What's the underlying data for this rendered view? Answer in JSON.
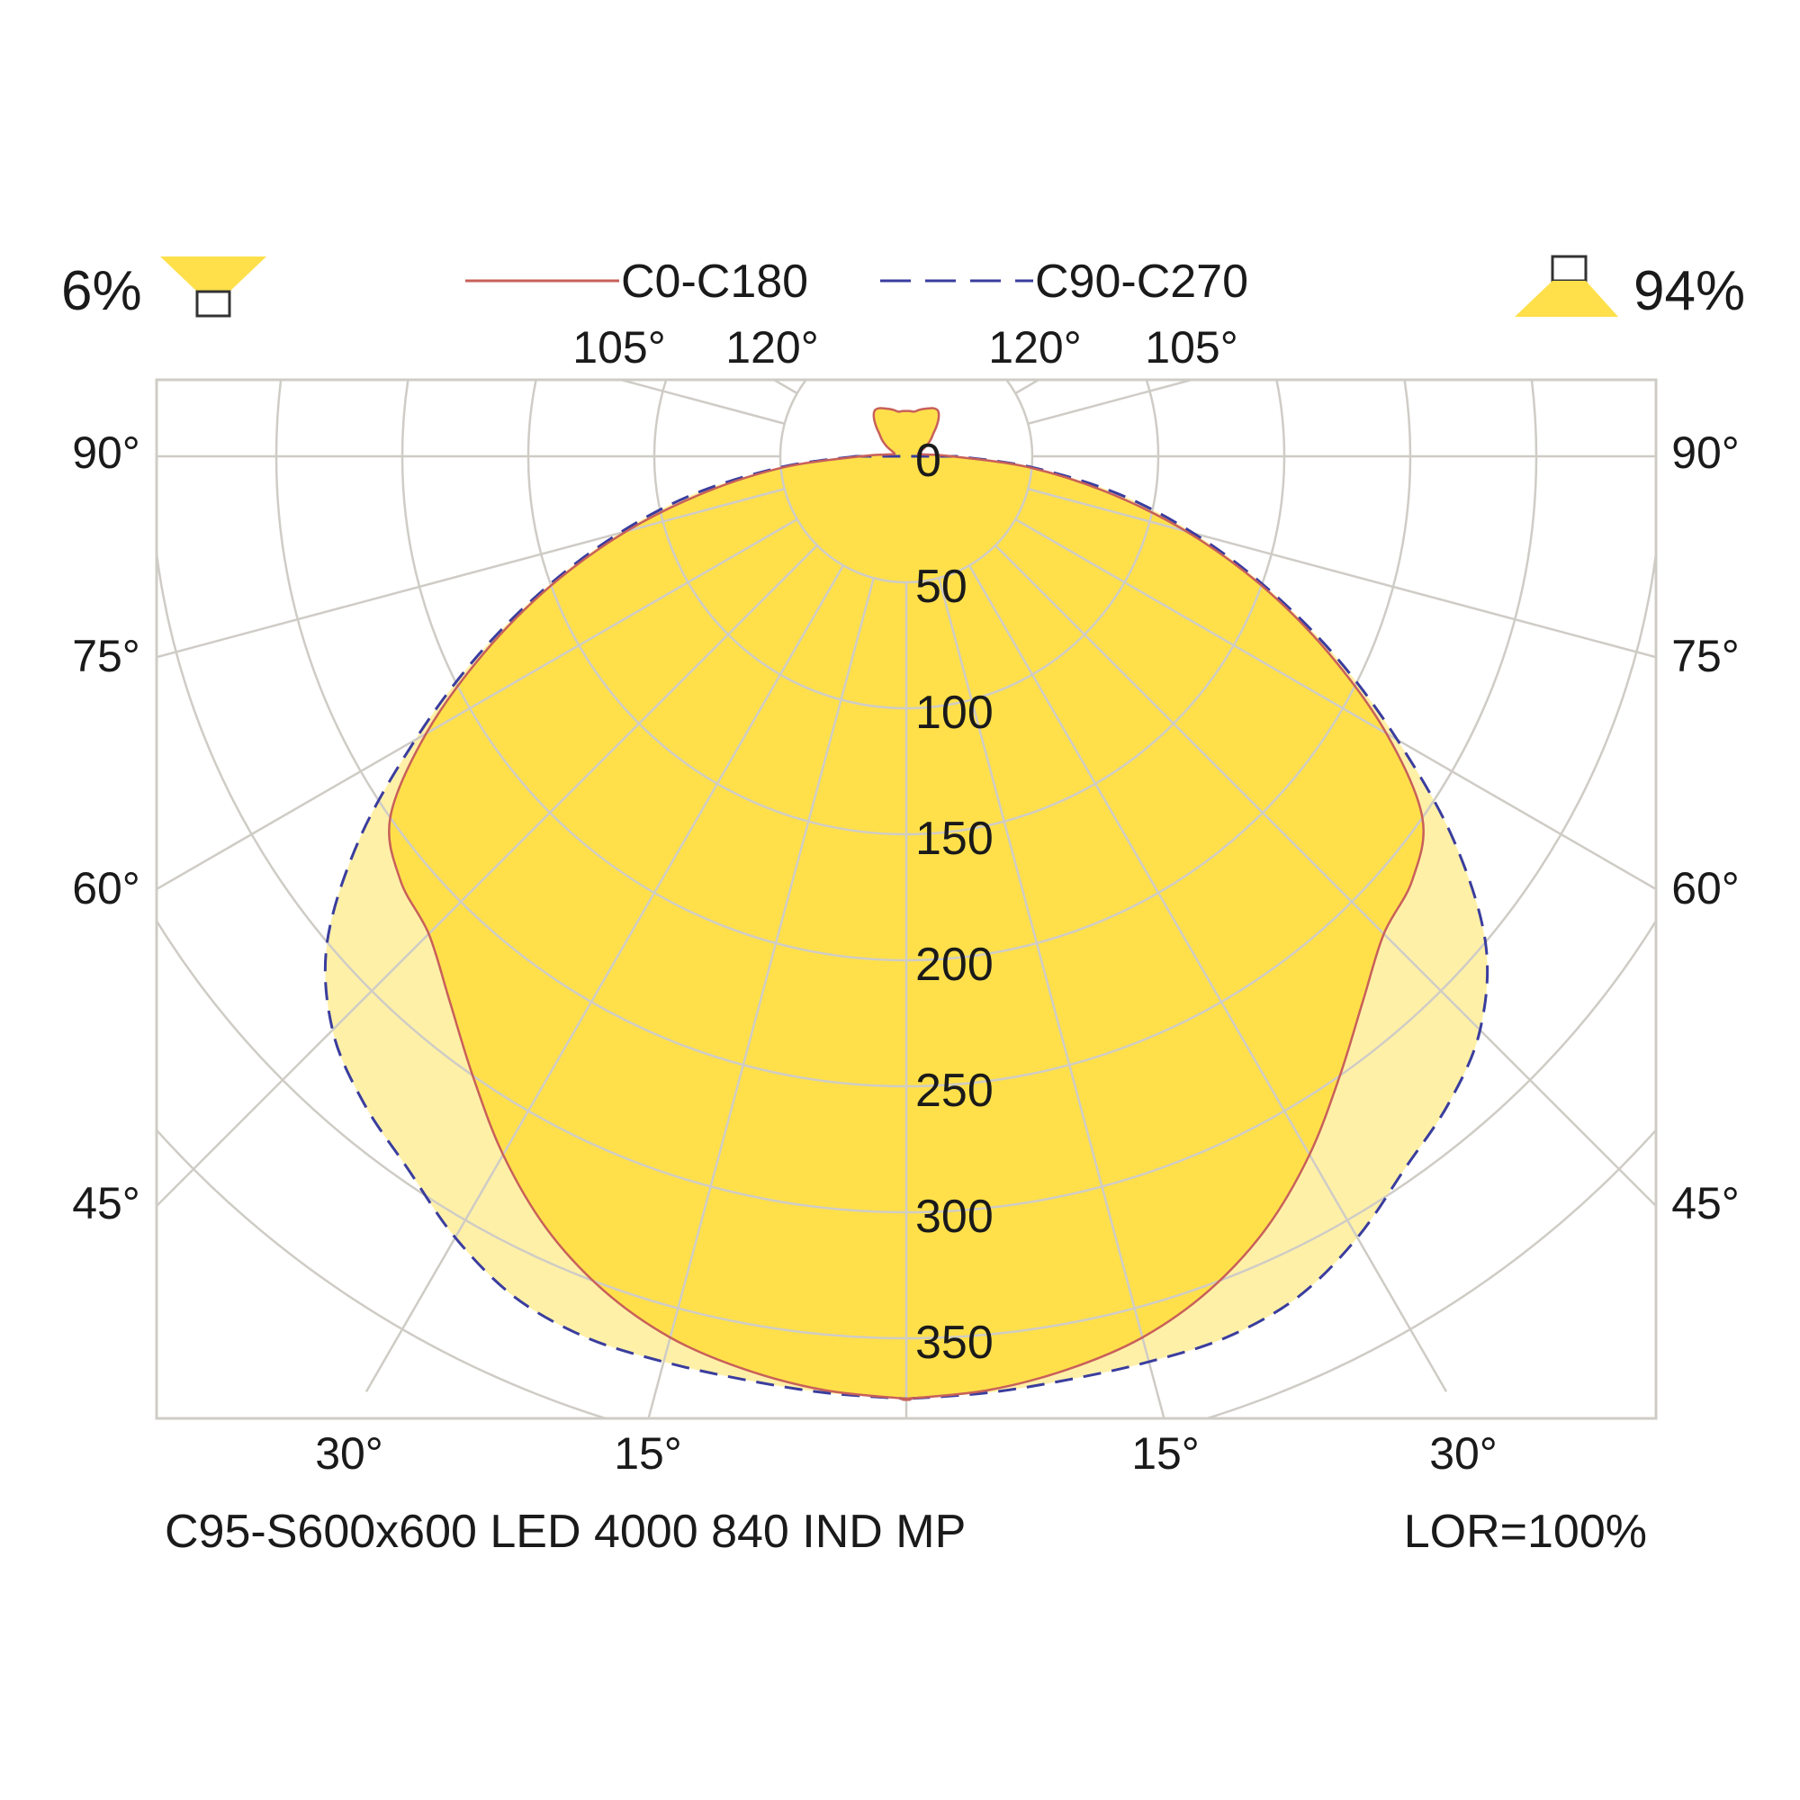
{
  "chart_data": {
    "type": "polar",
    "units_label": "",
    "radial_ticks": [
      0,
      50,
      100,
      150,
      200,
      250,
      300,
      350
    ],
    "radial_tick_labels": [
      "0",
      "50",
      "100",
      "150",
      "200",
      "250",
      "300",
      "350"
    ],
    "angle_labels_top": [
      "105°",
      "120°",
      "120°",
      "105°"
    ],
    "angle_labels_side": [
      "90°",
      "75°",
      "60°",
      "45°"
    ],
    "angle_labels_bottom": [
      "30°",
      "15°",
      "15°",
      "30°"
    ],
    "grid": true,
    "legend_position": "top-center",
    "downward_light_fraction": "94%",
    "upward_light_fraction": "6%",
    "series": [
      {
        "name": "C0-C180",
        "color": "#c8605a",
        "fill": "#ffe04a",
        "dash": "solid",
        "angles_deg": [
          0,
          5,
          10,
          15,
          20,
          25,
          30,
          35,
          40,
          45,
          50,
          55,
          60,
          65,
          70,
          75,
          80,
          85,
          90,
          95,
          100,
          105,
          110,
          115,
          120,
          125,
          130,
          135,
          140,
          145,
          150,
          155,
          160,
          165,
          170,
          175,
          180
        ],
        "values": [
          374,
          372,
          368,
          362,
          352,
          338,
          320,
          300,
          282,
          268,
          262,
          250,
          220,
          185,
          150,
          115,
          80,
          48,
          18,
          8,
          5,
          5,
          6,
          8,
          10,
          12,
          14,
          17,
          20,
          22,
          22,
          21,
          20,
          19,
          18,
          18,
          18
        ]
      },
      {
        "name": "C90-C270",
        "color": "#3a3d9e",
        "fill": "#fff0a8",
        "dash": "dashed",
        "angles_deg": [
          0,
          5,
          10,
          15,
          20,
          25,
          30,
          35,
          40,
          45,
          50,
          55,
          60,
          65,
          70,
          75,
          80,
          85,
          90
        ],
        "values": [
          374,
          373,
          372,
          372,
          372,
          368,
          358,
          345,
          335,
          322,
          300,
          265,
          225,
          188,
          152,
          118,
          85,
          50,
          20
        ]
      }
    ],
    "footer_left": "C95-S600x600 LED 4000 840 IND MP",
    "footer_right": "LOR=100%"
  }
}
